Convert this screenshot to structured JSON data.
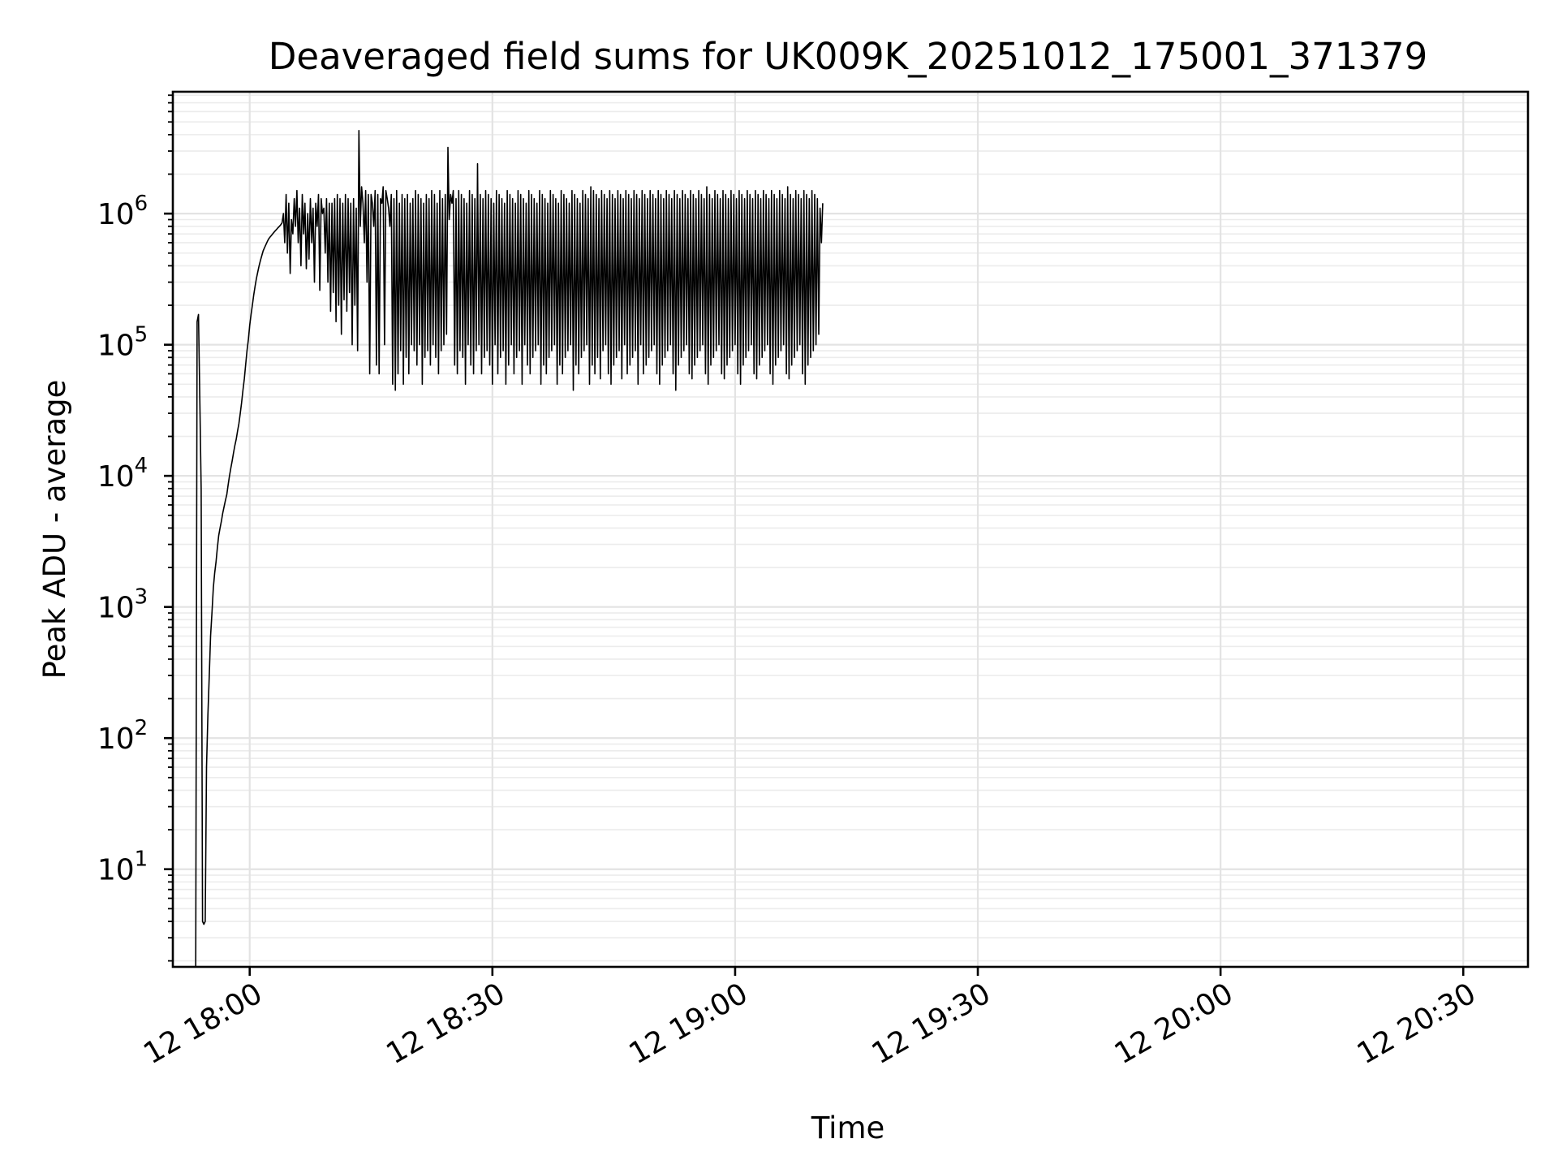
{
  "chart_data": {
    "type": "line",
    "title": "Deaveraged field sums for UK009K_20251012_175001_371379",
    "xlabel": "Time",
    "ylabel": "Peak ADU - average",
    "x_scale": "time",
    "y_scale": "log",
    "xlim": [
      "2025-10-12 17:50:30",
      "2025-10-12 20:38:00"
    ],
    "ylim": [
      1.8,
      8500000
    ],
    "x_ticks": [
      {
        "t": "2025-10-12 18:00:00",
        "label": "12 18:00"
      },
      {
        "t": "2025-10-12 18:30:00",
        "label": "12 18:30"
      },
      {
        "t": "2025-10-12 19:00:00",
        "label": "12 19:00"
      },
      {
        "t": "2025-10-12 19:30:00",
        "label": "12 19:30"
      },
      {
        "t": "2025-10-12 20:00:00",
        "label": "12 20:00"
      },
      {
        "t": "2025-10-12 20:30:00",
        "label": "12 20:30"
      }
    ],
    "y_ticks": [
      {
        "value": 10,
        "base": "10",
        "exp": "1"
      },
      {
        "value": 100,
        "base": "10",
        "exp": "2"
      },
      {
        "value": 1000,
        "base": "10",
        "exp": "3"
      },
      {
        "value": 10000,
        "base": "10",
        "exp": "4"
      },
      {
        "value": 100000,
        "base": "10",
        "exp": "5"
      },
      {
        "value": 1000000,
        "base": "10",
        "exp": "6"
      }
    ],
    "grid": true,
    "line_color": "#000000",
    "series": [
      {
        "name": "",
        "start": "2025-10-12 17:53:20",
        "step_seconds": 10,
        "values": [
          1.8,
          150000,
          170000,
          40000,
          8000,
          4,
          3.8,
          4,
          60,
          150,
          300,
          600,
          900,
          1400,
          1800,
          2200,
          2800,
          3500,
          4000,
          4500,
          5200,
          5800,
          6500,
          7200,
          8500,
          10000,
          11500,
          13000,
          15000,
          17000,
          19000,
          22000,
          25000,
          30000,
          36000,
          45000,
          55000,
          70000,
          90000,
          110000,
          140000,
          170000,
          200000,
          240000,
          280000,
          320000,
          360000,
          400000,
          440000,
          480000,
          520000,
          550000,
          580000,
          610000,
          640000,
          660000,
          680000,
          700000,
          720000,
          740000,
          760000,
          780000,
          800000,
          820000,
          850000,
          1000000,
          600000,
          1400000,
          500000,
          1200000,
          350000,
          900000,
          700000,
          1300000,
          800000,
          1500000,
          600000,
          1100000,
          400000,
          1400000,
          700000,
          1200000,
          380000,
          1000000,
          450000,
          1300000,
          600000,
          1100000,
          300000,
          1200000,
          800000,
          1400000,
          260000,
          1300000,
          1000000,
          1100000,
          500000,
          1300000,
          300000,
          1200000,
          180000,
          1200000,
          250000,
          1300000,
          150000,
          1400000,
          200000,
          1300000,
          120000,
          1200000,
          220000,
          1400000,
          180000,
          1300000,
          250000,
          1200000,
          100000,
          1300000,
          200000,
          1100000,
          90000,
          4300000,
          800000,
          1600000,
          1200000,
          600000,
          1500000,
          300000,
          1400000,
          60000,
          1400000,
          1200000,
          800000,
          1500000,
          70000,
          1400000,
          60000,
          1300000,
          1200000,
          1600000,
          100000,
          1500000,
          1300000,
          1100000,
          800000,
          1400000,
          50000,
          1300000,
          45000,
          1500000,
          60000,
          1200000,
          90000,
          1400000,
          50000,
          1300000,
          80000,
          1400000,
          60000,
          1200000,
          100000,
          1300000,
          90000,
          1500000,
          70000,
          1400000,
          100000,
          1300000,
          50000,
          1200000,
          80000,
          1400000,
          90000,
          1300000,
          70000,
          1500000,
          100000,
          1400000,
          80000,
          1200000,
          60000,
          1500000,
          90000,
          1300000,
          100000,
          1400000,
          120000,
          3200000,
          900000,
          1400000,
          1200000,
          1500000,
          70000,
          1300000,
          60000,
          1500000,
          90000,
          1400000,
          80000,
          1300000,
          50000,
          1200000,
          100000,
          1500000,
          70000,
          1400000,
          60000,
          1300000,
          90000,
          2400000,
          100000,
          1400000,
          60000,
          1300000,
          80000,
          1500000,
          90000,
          1400000,
          70000,
          1300000,
          50000,
          1200000,
          100000,
          1500000,
          60000,
          1400000,
          80000,
          1300000,
          90000,
          1200000,
          50000,
          1500000,
          70000,
          1400000,
          100000,
          1300000,
          60000,
          1200000,
          80000,
          1500000,
          90000,
          1400000,
          50000,
          1300000,
          100000,
          1200000,
          70000,
          1500000,
          60000,
          1400000,
          80000,
          1300000,
          90000,
          1200000,
          100000,
          1500000,
          50000,
          1400000,
          70000,
          1300000,
          60000,
          1200000,
          80000,
          1500000,
          90000,
          1400000,
          100000,
          1300000,
          50000,
          1200000,
          70000,
          1500000,
          60000,
          1400000,
          80000,
          1300000,
          90000,
          1200000,
          100000,
          1500000,
          45000,
          1400000,
          70000,
          1300000,
          60000,
          1200000,
          80000,
          1500000,
          90000,
          1400000,
          100000,
          1300000,
          50000,
          1600000,
          70000,
          1500000,
          60000,
          1400000,
          80000,
          1300000,
          55000,
          1500000,
          90000,
          1400000,
          100000,
          1300000,
          60000,
          1500000,
          50000,
          1400000,
          70000,
          1300000,
          80000,
          1500000,
          90000,
          1400000,
          55000,
          1300000,
          100000,
          1500000,
          60000,
          1400000,
          70000,
          1300000,
          80000,
          1500000,
          90000,
          1400000,
          50000,
          1300000,
          100000,
          1500000,
          60000,
          1400000,
          70000,
          1300000,
          80000,
          1500000,
          90000,
          1400000,
          100000,
          1300000,
          60000,
          1500000,
          50000,
          1400000,
          70000,
          1300000,
          80000,
          1500000,
          90000,
          1400000,
          100000,
          1300000,
          60000,
          1500000,
          45000,
          1400000,
          70000,
          1300000,
          80000,
          1500000,
          90000,
          1400000,
          100000,
          1300000,
          60000,
          1500000,
          55000,
          1400000,
          70000,
          1300000,
          80000,
          1500000,
          90000,
          1400000,
          100000,
          1300000,
          60000,
          1600000,
          50000,
          1400000,
          70000,
          1300000,
          80000,
          1500000,
          90000,
          1400000,
          100000,
          1300000,
          60000,
          1500000,
          55000,
          1400000,
          70000,
          1300000,
          80000,
          1500000,
          90000,
          1400000,
          100000,
          1300000,
          60000,
          1500000,
          50000,
          1400000,
          70000,
          1300000,
          80000,
          1500000,
          90000,
          1400000,
          100000,
          1300000,
          60000,
          1500000,
          55000,
          1400000,
          70000,
          1300000,
          80000,
          1500000,
          90000,
          1400000,
          100000,
          1300000,
          60000,
          1500000,
          50000,
          1400000,
          70000,
          1300000,
          80000,
          1500000,
          90000,
          1400000,
          100000,
          1300000,
          60000,
          1600000,
          55000,
          1400000,
          70000,
          1300000,
          80000,
          1500000,
          90000,
          1400000,
          100000,
          1300000,
          60000,
          1500000,
          50000,
          1400000,
          70000,
          1300000,
          80000,
          1500000,
          90000,
          1400000,
          100000,
          1300000,
          120000,
          1100000,
          600000,
          1200000
        ]
      }
    ]
  }
}
